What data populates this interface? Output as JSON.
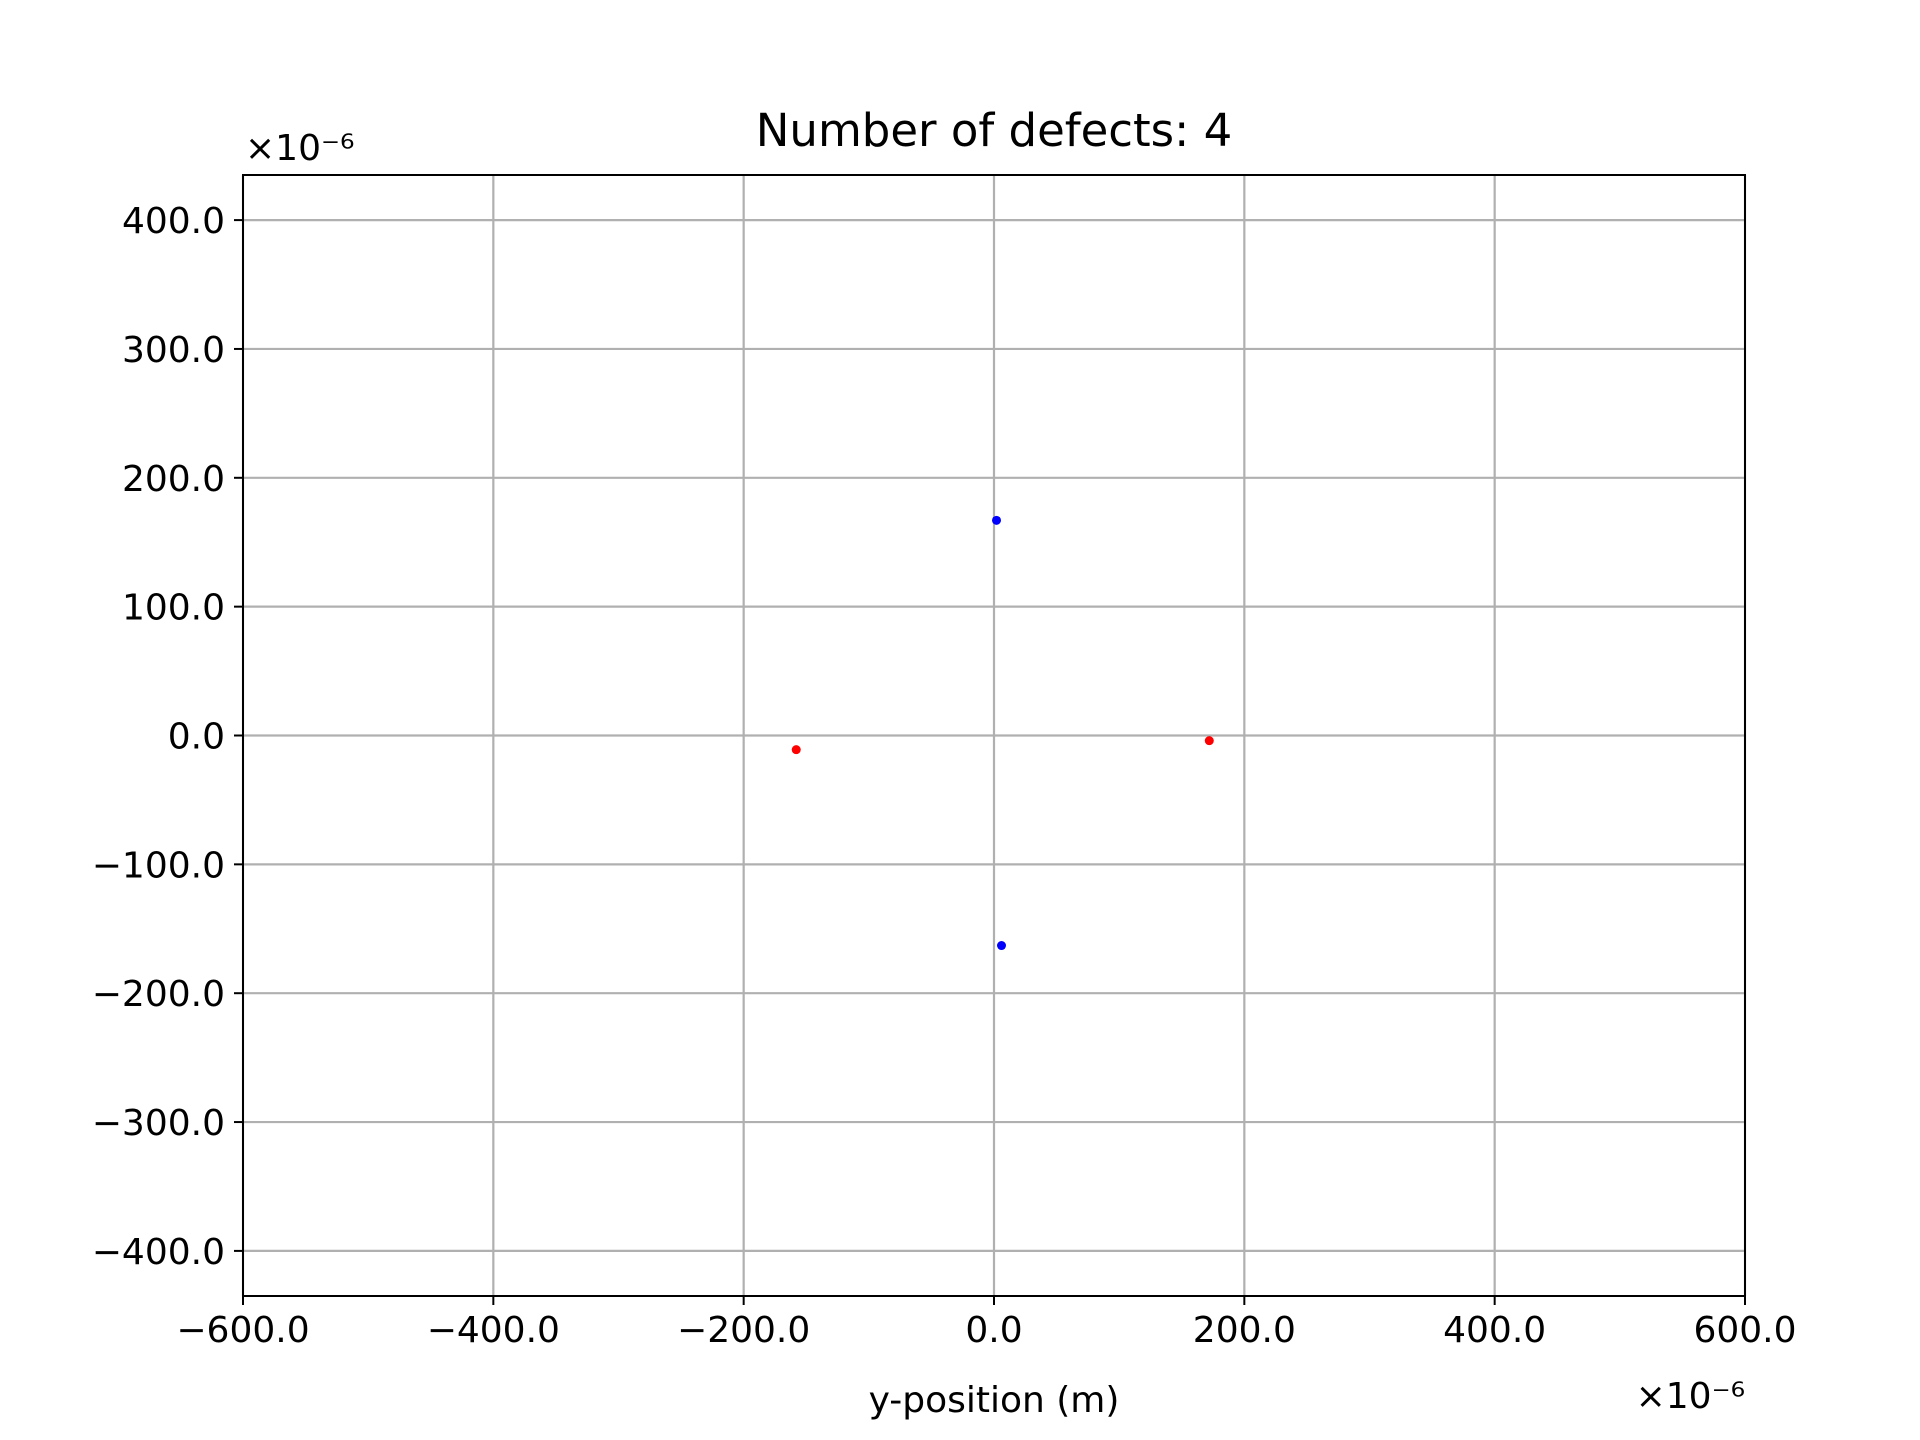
{
  "chart_data": {
    "type": "scatter",
    "title": "Number of defects: 4",
    "xlabel": "y-position (m)",
    "ylabel": "",
    "x_offset_label": "×10⁻⁶",
    "y_offset_label": "×10⁻⁶",
    "xlim": [
      -600,
      600
    ],
    "ylim": [
      -435,
      435
    ],
    "xticks": [
      -600,
      -400,
      -200,
      0,
      200,
      400,
      600
    ],
    "xtick_labels": [
      "−600.0",
      "−400.0",
      "−200.0",
      "0.0",
      "200.0",
      "400.0",
      "600.0"
    ],
    "yticks": [
      400,
      300,
      200,
      100,
      0,
      -100,
      -200,
      -300,
      -400
    ],
    "ytick_labels": [
      "400.0",
      "300.0",
      "200.0",
      "100.0",
      "0.0",
      "−100.0",
      "−200.0",
      "−300.0",
      "−400.0"
    ],
    "grid": true,
    "series": [
      {
        "color": "#0000ff",
        "points": [
          {
            "x": 2,
            "y": 167
          },
          {
            "x": 6,
            "y": -163
          }
        ]
      },
      {
        "color": "#ff0000",
        "points": [
          {
            "x": -158,
            "y": -11
          },
          {
            "x": 172,
            "y": -4
          }
        ]
      }
    ]
  }
}
